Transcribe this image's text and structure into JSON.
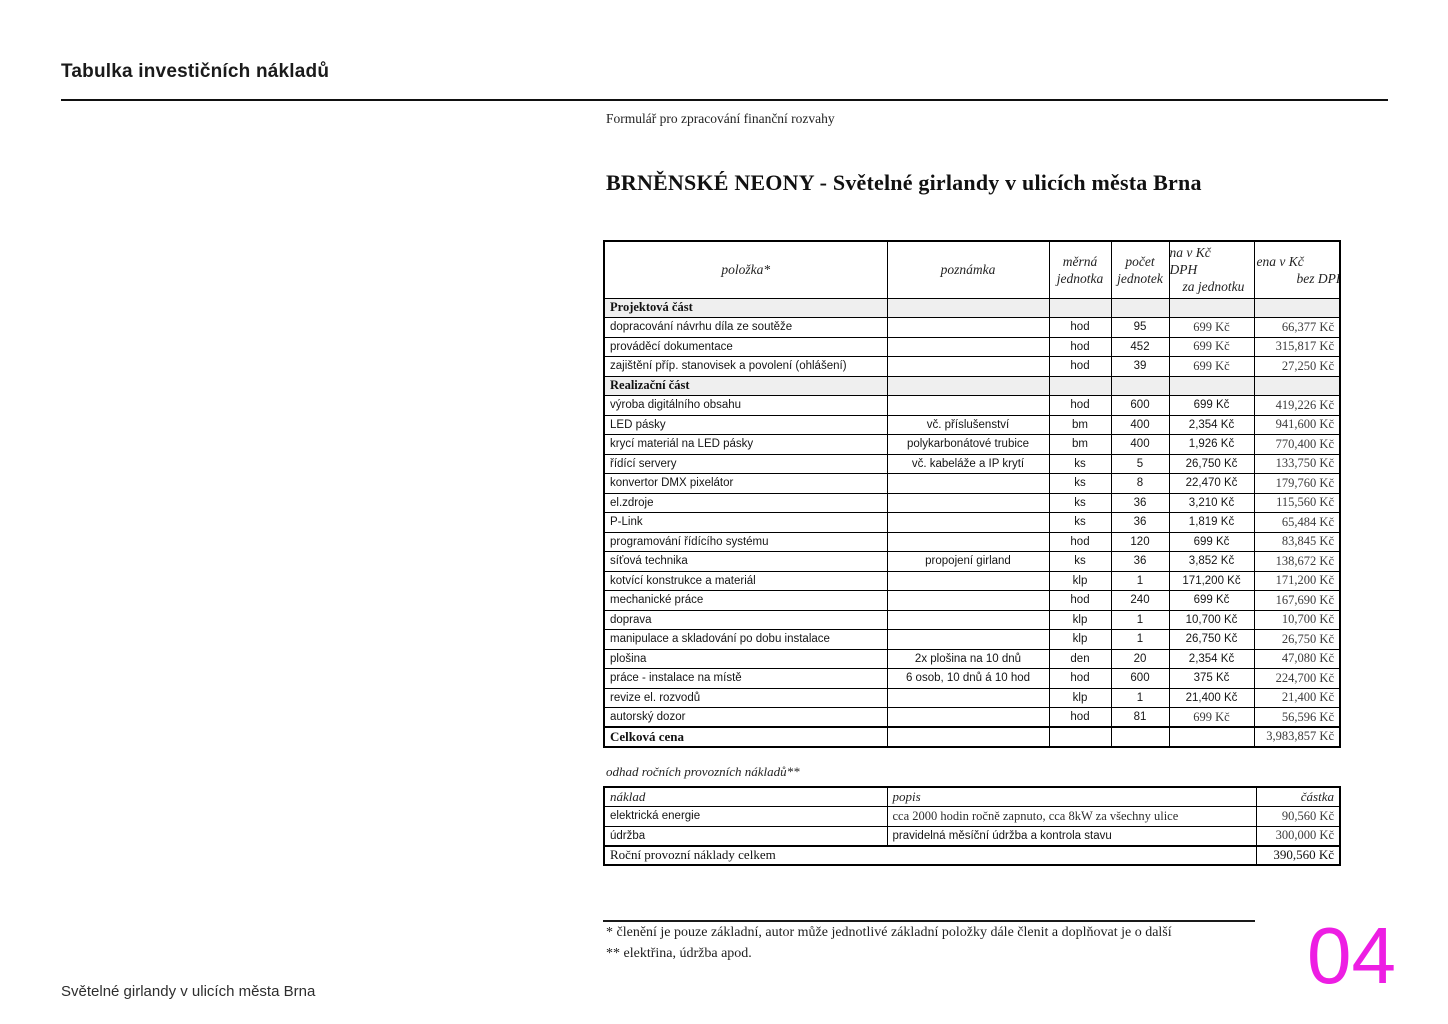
{
  "page": {
    "header_title": "Tabulka investičních nákladů",
    "footer_title": "Světelné girlandy v ulicích města Brna",
    "page_number": "04",
    "page_number_color": "#ED1EE3"
  },
  "document": {
    "form_label": "Formulář pro zpracování finanční rozvahy",
    "title": "BRNĚNSKÉ NEONY - Světelné girlandy v ulicích města Brna",
    "cost_table": {
      "headers": [
        {
          "lines": [
            "položka*"
          ],
          "clipped": false
        },
        {
          "lines": [
            "poznámka"
          ],
          "clipped": false
        },
        {
          "lines": [
            "měrná",
            "jednotka"
          ],
          "clipped": false
        },
        {
          "lines": [
            "počet",
            "jednotek"
          ],
          "clipped": false
        },
        {
          "lines": [
            "na v Kč",
            "DPH",
            "za jednotku"
          ],
          "clipped": true
        },
        {
          "lines": [
            "ena v Kč",
            "bez DPH"
          ],
          "clipped": true
        }
      ],
      "rows": [
        {
          "type": "section",
          "item": "Projektová část"
        },
        {
          "type": "item",
          "item": "dopracování návrhu díla ze soutěže",
          "note": "",
          "unit": "hod",
          "count": "95",
          "unit_price": "699 Kč",
          "unit_price_serif": true,
          "total": "66,377 Kč"
        },
        {
          "type": "item",
          "item": "prováděcí dokumentace",
          "note": "",
          "unit": "hod",
          "count": "452",
          "unit_price": "699 Kč",
          "unit_price_serif": true,
          "total": "315,817 Kč"
        },
        {
          "type": "item",
          "item": "zajištění příp. stanovisek a povolení (ohlášení)",
          "note": "",
          "unit": "hod",
          "count": "39",
          "unit_price": "699 Kč",
          "unit_price_serif": true,
          "total": "27,250 Kč"
        },
        {
          "type": "section",
          "item": "Realizační část"
        },
        {
          "type": "item",
          "item": "výroba digitálního obsahu",
          "note": "",
          "unit": "hod",
          "count": "600",
          "unit_price": "699 Kč",
          "unit_price_serif": false,
          "total": "419,226 Kč"
        },
        {
          "type": "item",
          "item": "LED pásky",
          "note": "vč. příslušenství",
          "unit": "bm",
          "count": "400",
          "unit_price": "2,354 Kč",
          "unit_price_serif": false,
          "total": "941,600 Kč"
        },
        {
          "type": "item",
          "item": "krycí materiál na LED pásky",
          "note": "polykarbonátové trubice",
          "unit": "bm",
          "count": "400",
          "unit_price": "1,926 Kč",
          "unit_price_serif": false,
          "total": "770,400 Kč"
        },
        {
          "type": "item",
          "item": "řídící servery",
          "note": "vč. kabeláže a IP krytí",
          "unit": "ks",
          "count": "5",
          "unit_price": "26,750 Kč",
          "unit_price_serif": false,
          "total": "133,750 Kč"
        },
        {
          "type": "item",
          "item": "konvertor DMX pixelátor",
          "note": "",
          "unit": "ks",
          "count": "8",
          "unit_price": "22,470 Kč",
          "unit_price_serif": false,
          "total": "179,760 Kč"
        },
        {
          "type": "item",
          "item": "el.zdroje",
          "note": "",
          "unit": "ks",
          "count": "36",
          "unit_price": "3,210 Kč",
          "unit_price_serif": false,
          "total": "115,560 Kč"
        },
        {
          "type": "item",
          "item": "P-Link",
          "note": "",
          "unit": "ks",
          "count": "36",
          "unit_price": "1,819 Kč",
          "unit_price_serif": false,
          "total": "65,484 Kč"
        },
        {
          "type": "item",
          "item": "programování řídícího systému",
          "note": "",
          "unit": "hod",
          "count": "120",
          "unit_price": "699 Kč",
          "unit_price_serif": false,
          "total": "83,845 Kč"
        },
        {
          "type": "item",
          "item": "síťová technika",
          "note": "propojení girland",
          "unit": "ks",
          "count": "36",
          "unit_price": "3,852 Kč",
          "unit_price_serif": false,
          "total": "138,672 Kč"
        },
        {
          "type": "item",
          "item": "kotvící konstrukce a materiál",
          "note": "",
          "unit": "klp",
          "count": "1",
          "unit_price": "171,200 Kč",
          "unit_price_serif": false,
          "total": "171,200 Kč"
        },
        {
          "type": "item",
          "item": "mechanické práce",
          "note": "",
          "unit": "hod",
          "count": "240",
          "unit_price": "699 Kč",
          "unit_price_serif": false,
          "total": "167,690 Kč"
        },
        {
          "type": "item",
          "item": "doprava",
          "note": "",
          "unit": "klp",
          "count": "1",
          "unit_price": "10,700 Kč",
          "unit_price_serif": false,
          "total": "10,700 Kč"
        },
        {
          "type": "item",
          "item": "manipulace a skladování po dobu instalace",
          "note": "",
          "unit": "klp",
          "count": "1",
          "unit_price": "26,750 Kč",
          "unit_price_serif": false,
          "total": "26,750 Kč"
        },
        {
          "type": "item",
          "item": "plošina",
          "note": "2x plošina na 10 dnů",
          "unit": "den",
          "count": "20",
          "unit_price": "2,354 Kč",
          "unit_price_serif": false,
          "total": "47,080 Kč"
        },
        {
          "type": "item",
          "item": "práce - instalace na místě",
          "note": "6 osob, 10 dnů á 10 hod",
          "unit": "hod",
          "count": "600",
          "unit_price": "375 Kč",
          "unit_price_serif": false,
          "total": "224,700 Kč"
        },
        {
          "type": "item",
          "item": "revize el. rozvodů",
          "note": "",
          "unit": "klp",
          "count": "1",
          "unit_price": "21,400 Kč",
          "unit_price_serif": false,
          "total": "21,400 Kč"
        },
        {
          "type": "item",
          "item": "autorský dozor",
          "note": "",
          "unit": "hod",
          "count": "81",
          "unit_price": "699 Kč",
          "unit_price_serif": true,
          "total": "56,596 Kč"
        },
        {
          "type": "total",
          "item": "Celková cena",
          "total": "3,983,857 Kč"
        }
      ]
    },
    "operating_table": {
      "caption": "odhad ročních provozních nákladů**",
      "headers": [
        "náklad",
        "popis",
        "částka"
      ],
      "rows": [
        {
          "type": "item",
          "cost": "elektrická energie",
          "desc": "cca 2000 hodin ročně zapnuto, cca 8kW za všechny ulice",
          "desc_serif": true,
          "amount": "90,560 Kč"
        },
        {
          "type": "item",
          "cost": "údržba",
          "desc": "pravidelná měsíční údržba a kontrola stavu",
          "desc_serif": false,
          "amount": "300,000 Kč"
        },
        {
          "type": "total",
          "cost": "Roční provozní náklady celkem",
          "amount": "390,560 Kč"
        }
      ]
    },
    "footnotes": [
      "* členění je pouze základní, autor může jednotlivé základní položky dále členit a doplňovat je o další",
      "**  elektřina, údržba apod."
    ]
  }
}
